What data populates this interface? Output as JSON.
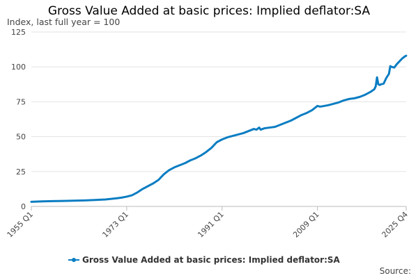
{
  "chart_data": {
    "type": "line",
    "title": "Gross Value Added at basic prices: Implied deflator:SA",
    "ylabel": "Index, last full year = 100",
    "xlabel": "",
    "ylim": [
      0,
      125
    ],
    "yticks": [
      0,
      25,
      50,
      75,
      100,
      125
    ],
    "xlim": [
      1955.0,
      2025.75
    ],
    "xticks": [
      {
        "label": "1955 Q1",
        "value": 1955.0
      },
      {
        "label": "1973 Q1",
        "value": 1973.0
      },
      {
        "label": "1991 Q1",
        "value": 1991.0
      },
      {
        "label": "2009 Q1",
        "value": 2009.0
      },
      {
        "label": "2025 Q4",
        "value": 2025.75
      }
    ],
    "grid": true,
    "legend_position": "bottom",
    "series": [
      {
        "name": "Gross Value Added at basic prices: Implied deflator:SA",
        "color": "#0a7dc2",
        "points": [
          [
            1955.0,
            3.3
          ],
          [
            1957.0,
            3.6
          ],
          [
            1959.0,
            3.8
          ],
          [
            1961.0,
            3.9
          ],
          [
            1963.0,
            4.1
          ],
          [
            1965.0,
            4.3
          ],
          [
            1967.0,
            4.6
          ],
          [
            1969.0,
            5.0
          ],
          [
            1971.0,
            5.8
          ],
          [
            1972.0,
            6.3
          ],
          [
            1973.0,
            7.0
          ],
          [
            1974.0,
            8.0
          ],
          [
            1975.0,
            10.0
          ],
          [
            1976.0,
            12.5
          ],
          [
            1977.0,
            14.5
          ],
          [
            1978.0,
            16.5
          ],
          [
            1979.0,
            19.0
          ],
          [
            1980.0,
            23.0
          ],
          [
            1981.0,
            26.0
          ],
          [
            1982.0,
            28.0
          ],
          [
            1983.0,
            29.5
          ],
          [
            1984.0,
            31.0
          ],
          [
            1985.0,
            33.0
          ],
          [
            1986.0,
            34.5
          ],
          [
            1987.0,
            36.5
          ],
          [
            1988.0,
            39.0
          ],
          [
            1989.0,
            42.0
          ],
          [
            1990.0,
            46.0
          ],
          [
            1991.0,
            48.0
          ],
          [
            1992.0,
            49.5
          ],
          [
            1993.0,
            50.5
          ],
          [
            1994.0,
            51.5
          ],
          [
            1995.0,
            52.5
          ],
          [
            1996.0,
            54.0
          ],
          [
            1997.0,
            55.5
          ],
          [
            1997.5,
            55.0
          ],
          [
            1998.0,
            56.5
          ],
          [
            1998.3,
            55.0
          ],
          [
            1999.0,
            56.0
          ],
          [
            2000.0,
            56.5
          ],
          [
            2001.0,
            57.0
          ],
          [
            2002.0,
            58.5
          ],
          [
            2003.0,
            60.0
          ],
          [
            2004.0,
            61.5
          ],
          [
            2005.0,
            63.5
          ],
          [
            2006.0,
            65.5
          ],
          [
            2007.0,
            67.0
          ],
          [
            2008.0,
            69.0
          ],
          [
            2009.0,
            72.0
          ],
          [
            2009.5,
            71.5
          ],
          [
            2010.0,
            71.8
          ],
          [
            2011.0,
            72.5
          ],
          [
            2012.0,
            73.5
          ],
          [
            2013.0,
            74.5
          ],
          [
            2014.0,
            76.0
          ],
          [
            2015.0,
            77.0
          ],
          [
            2016.0,
            77.5
          ],
          [
            2017.0,
            78.5
          ],
          [
            2018.0,
            80.0
          ],
          [
            2019.0,
            82.0
          ],
          [
            2019.75,
            84.0
          ],
          [
            2020.0,
            86.0
          ],
          [
            2020.25,
            92.5
          ],
          [
            2020.5,
            87.5
          ],
          [
            2020.75,
            87.0
          ],
          [
            2021.0,
            87.5
          ],
          [
            2021.5,
            88.0
          ],
          [
            2022.0,
            92.0
          ],
          [
            2022.5,
            95.0
          ],
          [
            2022.75,
            100.5
          ],
          [
            2023.0,
            100.0
          ],
          [
            2023.5,
            99.5
          ],
          [
            2024.0,
            102.0
          ],
          [
            2024.5,
            104.0
          ],
          [
            2025.0,
            106.0
          ],
          [
            2025.5,
            107.5
          ],
          [
            2025.75,
            108.0
          ]
        ]
      }
    ],
    "source_label": "Source:"
  }
}
